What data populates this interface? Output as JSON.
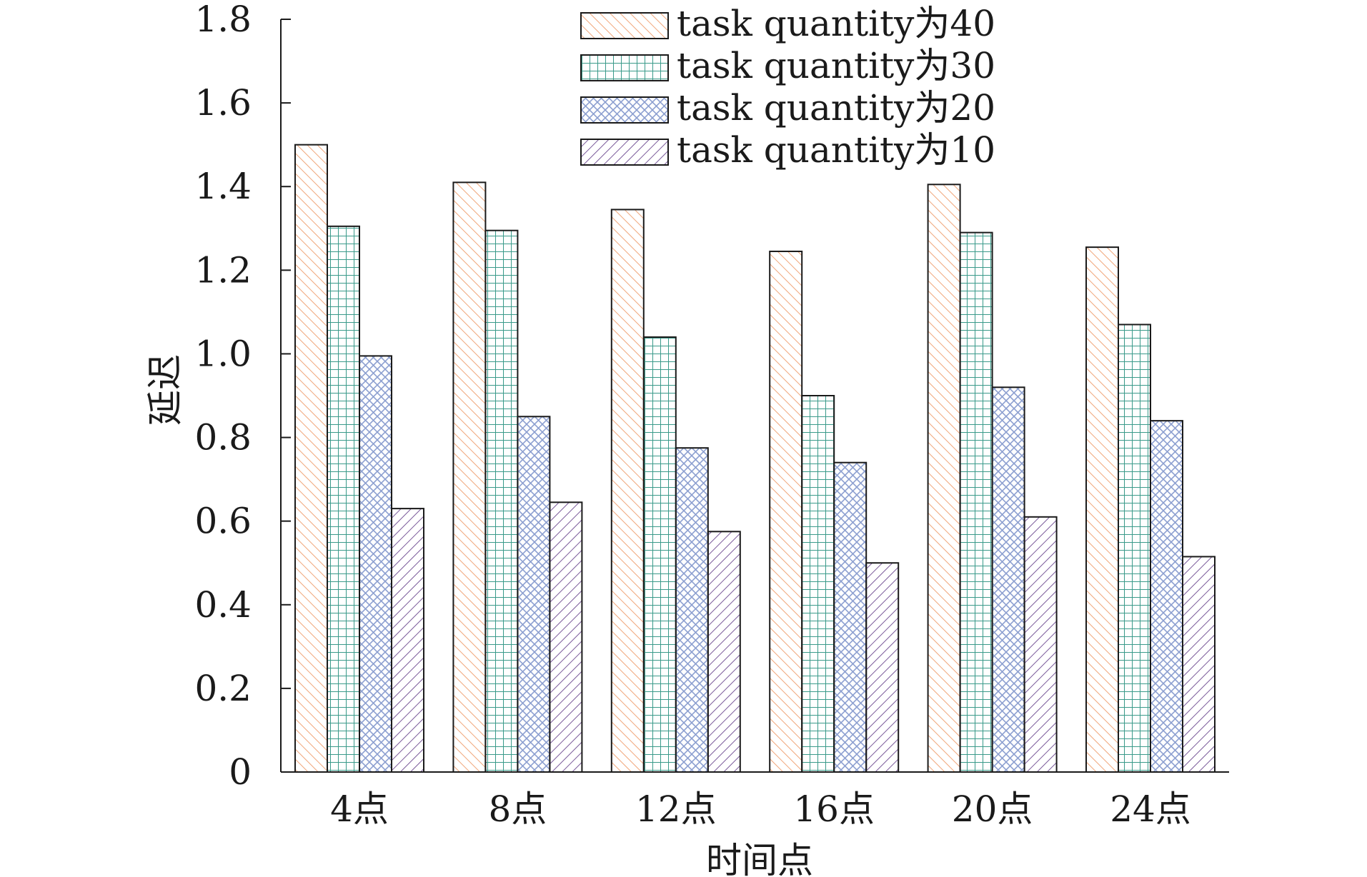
{
  "chart_data": {
    "type": "bar",
    "xlabel": "时间点",
    "ylabel": "延迟",
    "ylim": [
      0,
      1.8
    ],
    "yticks": [
      "0",
      "0.2",
      "0.4",
      "0.6",
      "0.8",
      "1.0",
      "1.2",
      "1.4",
      "1.6",
      "1.8"
    ],
    "categories": [
      "4点",
      "8点",
      "12点",
      "16点",
      "20点",
      "24点"
    ],
    "grid": false,
    "legend_position": "top-right",
    "series": [
      {
        "name": "task quantity为40",
        "values": [
          1.5,
          1.41,
          1.345,
          1.245,
          1.405,
          1.255
        ],
        "color": "#f0a67a",
        "pattern": "diagonal-hatch"
      },
      {
        "name": "task quantity为30",
        "values": [
          1.305,
          1.295,
          1.04,
          0.9,
          1.29,
          1.07
        ],
        "color": "#3a9a8a",
        "pattern": "grid"
      },
      {
        "name": "task quantity为20",
        "values": [
          0.995,
          0.85,
          0.775,
          0.74,
          0.92,
          0.84
        ],
        "color": "#8c9fd0",
        "pattern": "crosshatch"
      },
      {
        "name": "task quantity为10",
        "values": [
          0.63,
          0.645,
          0.575,
          0.5,
          0.61,
          0.515
        ],
        "color": "#7a5a9a",
        "pattern": "back-diagonal-hatch"
      }
    ]
  }
}
